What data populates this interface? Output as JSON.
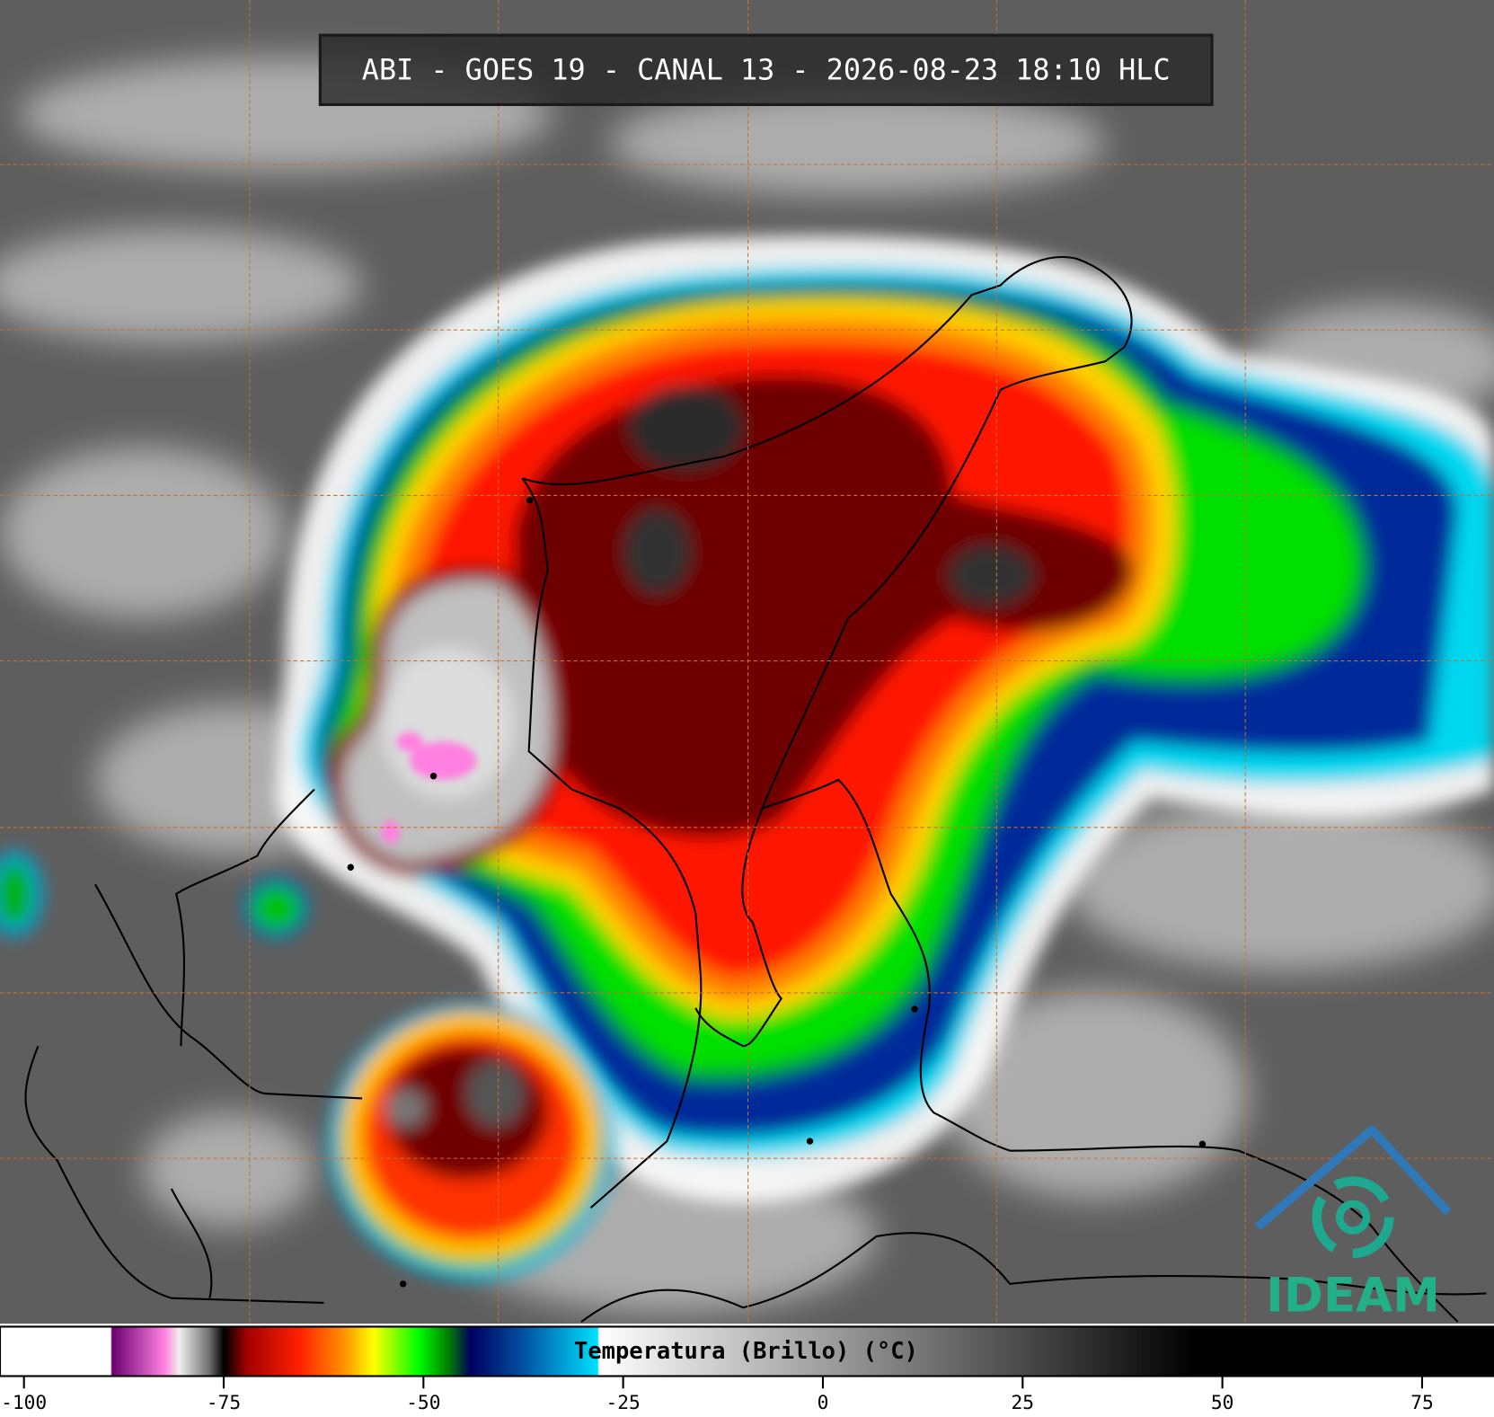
{
  "header": {
    "title": "ABI - GOES 19 - CANAL 13 - 2026-08-23 18:10 HLC"
  },
  "colorbar": {
    "label": "Temperatura (Brillo) (°C)",
    "range": [
      -103,
      84
    ],
    "ticks": [
      -100,
      -75,
      -50,
      -25,
      0,
      25,
      50,
      75
    ]
  },
  "logo": {
    "text": "IDEAM"
  }
}
